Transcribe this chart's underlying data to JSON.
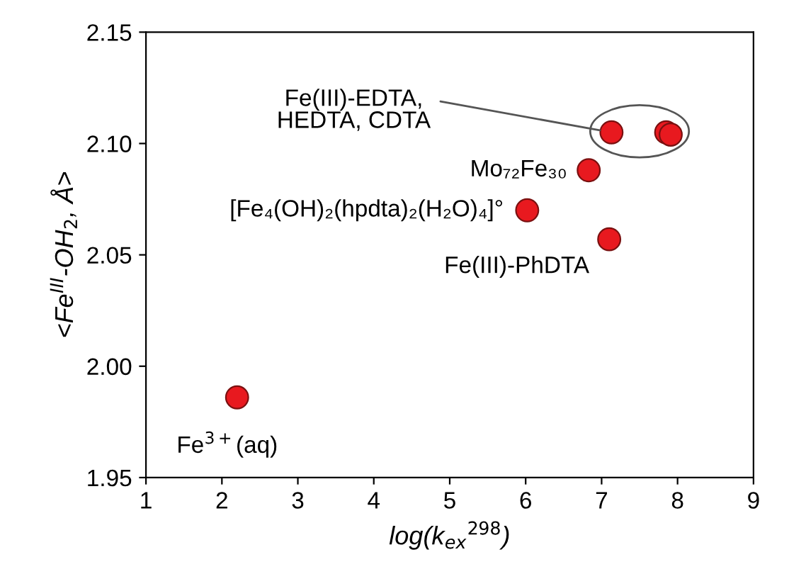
{
  "chart_data": {
    "type": "scatter",
    "xlabel": "log(k$_{ex}$$^{298}$)",
    "ylabel": "<Fe$^{III}$-OH$_{2}$, Å>",
    "x": [
      2.2,
      6.02,
      6.83,
      7.1,
      7.13,
      7.85,
      7.91
    ],
    "series": [
      {
        "color": "#e8191f",
        "values": [
          1.986,
          2.07,
          2.088,
          2.057,
          2.105,
          2.105,
          2.104
        ]
      }
    ],
    "marker": "circle",
    "xlim": [
      1,
      9
    ],
    "xticks": [
      1,
      2,
      3,
      4,
      5,
      6,
      7,
      8,
      9
    ],
    "ylim": [
      1.95,
      2.15
    ],
    "yticks": [
      {
        "value": 1.95,
        "label": "1.95"
      },
      {
        "value": 2.0,
        "label": "2.00"
      },
      {
        "value": 2.05,
        "label": "2.05"
      },
      {
        "value": 2.1,
        "label": "2.10"
      },
      {
        "value": 2.15,
        "label": "2.15"
      }
    ],
    "grid": false,
    "legend": false,
    "annotations": [
      {
        "text": "Fe(III)-EDTA,\nHEDTA, CDTA",
        "x": 7.13,
        "y": 2.105
      },
      {
        "text": "Mo₇₂Fe₃₀",
        "x": 6.83,
        "y": 2.088
      },
      {
        "text": "[Fe₄(OH)₂(hpdta)₂(H₂O)₄]°",
        "x": 6.02,
        "y": 2.07
      },
      {
        "text": "Fe(III)-PhDTA",
        "x": 7.1,
        "y": 2.057
      },
      {
        "text": "Fe$^{3+}$(aq)",
        "x": 2.2,
        "y": 1.986
      }
    ]
  }
}
